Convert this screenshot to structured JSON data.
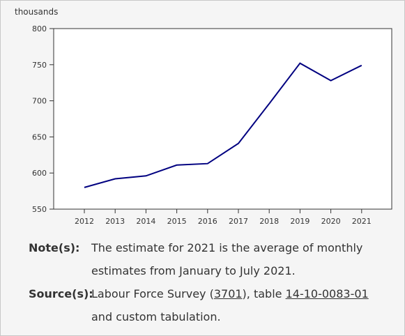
{
  "chart_data": {
    "type": "line",
    "ylabel": "thousands",
    "xlabel": "",
    "x": [
      "2012",
      "2013",
      "2014",
      "2015",
      "2016",
      "2017",
      "2018",
      "2019",
      "2020",
      "2021"
    ],
    "series": [
      {
        "values": [
          580,
          592,
          596,
          611,
          613,
          641,
          696,
          752,
          728,
          749
        ]
      }
    ],
    "ylim": [
      550,
      800
    ],
    "yticks": [
      550,
      600,
      650,
      700,
      750,
      800
    ],
    "grid": false,
    "colors": {
      "line": "#000080",
      "axis": "#333333",
      "plot_bg": "#ffffff",
      "panel_bg": "#f5f5f5"
    }
  },
  "notes": {
    "note_label": "Note(s):",
    "note_text": "The estimate for 2021 is the average of monthly estimates from January to July 2021.",
    "source_label": "Source(s):",
    "source_prefix": "Labour Force Survey (",
    "source_survey_link": "3701",
    "source_middle": "), table ",
    "source_table_link": "14-10-0083-01",
    "source_suffix": " and custom tabulation."
  }
}
